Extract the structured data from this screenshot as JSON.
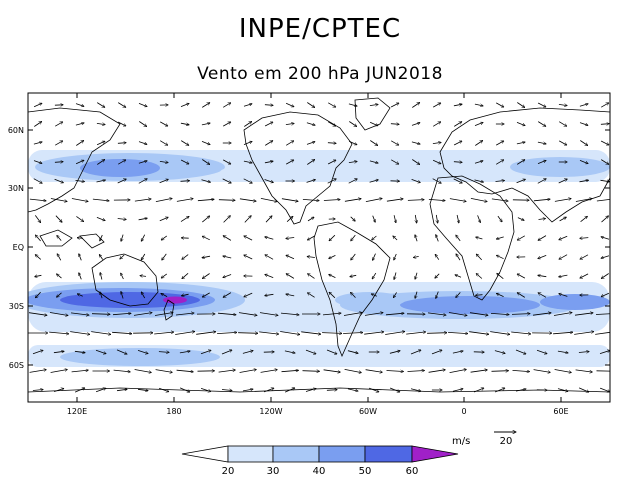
{
  "header": {
    "title": "INPE/CPTEC",
    "subtitle": "Vento em 200 hPa JUN2018"
  },
  "map": {
    "lat_ticks": [
      "60N",
      "30N",
      "EQ",
      "30S",
      "60S"
    ],
    "lon_ticks": [
      "120E",
      "180",
      "120W",
      "60W",
      "0",
      "60E"
    ],
    "shading_colors": [
      "#ffffff",
      "#d6e6fb",
      "#a9c8f6",
      "#7a9ef0",
      "#4f68e4",
      "#a020c8"
    ]
  },
  "vector_reference": {
    "unit": "m/s",
    "value": "20"
  },
  "colorbar": {
    "labels": [
      "20",
      "30",
      "40",
      "50",
      "60"
    ]
  }
}
